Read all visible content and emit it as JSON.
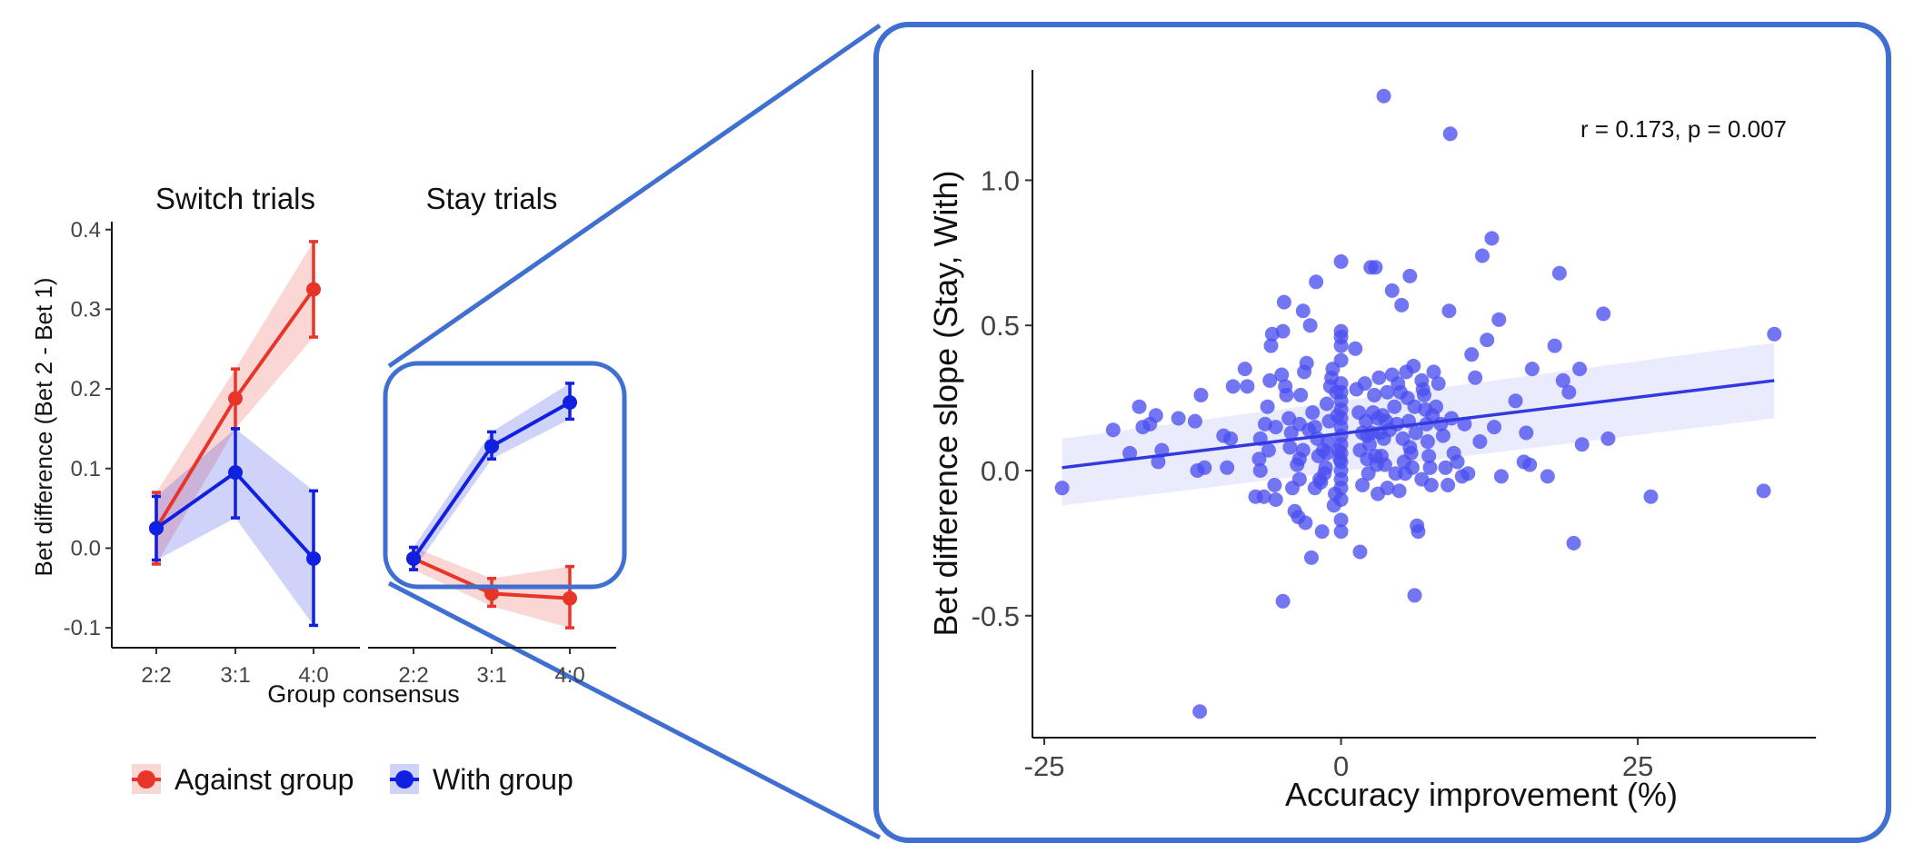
{
  "colors": {
    "against": "#e8352a",
    "with": "#1020e0",
    "scatter": "#4b4ff0",
    "fit": "#3338e0",
    "frame": "#3f6fd0"
  },
  "legend": {
    "against_label": "Against group",
    "with_label": "With group"
  },
  "chart_data": [
    {
      "type": "line",
      "title": "Switch trials",
      "xlabel": "Group consensus",
      "ylabel": "Bet difference (Bet 2 - Bet 1)",
      "categories": [
        "2:2",
        "3:1",
        "4:0"
      ],
      "ylim": [
        -0.125,
        0.41
      ],
      "yticks": [
        -0.1,
        0.0,
        0.1,
        0.2,
        0.3,
        0.4
      ],
      "ytick_labels": [
        "-0.1",
        "0.0",
        "0.1",
        "0.2",
        "0.3",
        "0.4"
      ],
      "series": [
        {
          "name": "Against group",
          "values": [
            0.025,
            0.188,
            0.325
          ],
          "lower": [
            -0.02,
            0.15,
            0.265
          ],
          "upper": [
            0.07,
            0.225,
            0.385
          ]
        },
        {
          "name": "With group",
          "values": [
            0.025,
            0.095,
            -0.013
          ],
          "lower": [
            -0.015,
            0.038,
            -0.097
          ],
          "upper": [
            0.065,
            0.15,
            0.072
          ]
        }
      ]
    },
    {
      "type": "line",
      "title": "Stay trials",
      "xlabel": "Group consensus",
      "categories": [
        "2:2",
        "3:1",
        "4:0"
      ],
      "ylim": [
        -0.125,
        0.41
      ],
      "series": [
        {
          "name": "Against group",
          "values": [
            -0.013,
            -0.057,
            -0.063
          ],
          "lower": [
            -0.027,
            -0.073,
            -0.1
          ],
          "upper": [
            0.001,
            -0.038,
            -0.023
          ]
        },
        {
          "name": "With group",
          "values": [
            -0.013,
            0.128,
            0.183
          ],
          "lower": [
            -0.027,
            0.112,
            0.162
          ],
          "upper": [
            0.001,
            0.146,
            0.207
          ]
        }
      ]
    },
    {
      "type": "scatter",
      "xlabel": "Accuracy improvement (%)",
      "ylabel": "Bet difference slope (Stay, With)",
      "annotation": "r = 0.173, p = 0.007",
      "xlim": [
        -26,
        40
      ],
      "ylim": [
        -0.92,
        1.38
      ],
      "xticks": [
        -25,
        0,
        25
      ],
      "xtick_labels": [
        "-25",
        "0",
        "25"
      ],
      "yticks": [
        -0.5,
        0.0,
        0.5,
        1.0
      ],
      "ytick_labels": [
        "-0.5",
        "0.0",
        "0.5",
        "1.0"
      ],
      "fit": {
        "x": [
          -23.5,
          36.5
        ],
        "y": [
          0.01,
          0.31
        ],
        "ci_lower": [
          -0.12,
          0.18
        ],
        "ci_upper": [
          0.11,
          0.44
        ]
      },
      "points": [
        [
          -23.5,
          -0.06
        ],
        [
          -19.2,
          0.14
        ],
        [
          -17.8,
          0.06
        ],
        [
          -17,
          0.22
        ],
        [
          -16.7,
          0.15
        ],
        [
          -16.1,
          0.16
        ],
        [
          -15.6,
          0.19
        ],
        [
          -15.4,
          0.03
        ],
        [
          -15.1,
          0.07
        ],
        [
          -12.3,
          0.17
        ],
        [
          -11.8,
          0.26
        ],
        [
          -11.5,
          0.01
        ],
        [
          -11.9,
          -0.83
        ],
        [
          -9.9,
          0.12
        ],
        [
          -9.6,
          0.01
        ],
        [
          -9.3,
          0.11
        ],
        [
          -9.1,
          0.29
        ],
        [
          -8.1,
          0.35
        ],
        [
          -7.9,
          0.29
        ],
        [
          -7.2,
          -0.09
        ],
        [
          -6.9,
          0.04
        ],
        [
          -6.8,
          0
        ],
        [
          -6.5,
          -0.09
        ],
        [
          -6.1,
          0.07
        ],
        [
          -6.2,
          0.22
        ],
        [
          -6,
          0.31
        ],
        [
          -5.9,
          0.43
        ],
        [
          -5.8,
          0.47
        ],
        [
          -5.6,
          -0.05
        ],
        [
          -5.5,
          -0.1
        ],
        [
          -5.5,
          0.15
        ],
        [
          -5,
          0.33
        ],
        [
          -4.9,
          0.48
        ],
        [
          -4.8,
          0.58
        ],
        [
          -4.7,
          0.29
        ],
        [
          -4.6,
          0.26
        ],
        [
          -4.4,
          0.18
        ],
        [
          -4.3,
          0.08
        ],
        [
          -4.2,
          0.13
        ],
        [
          -4.1,
          -0.06
        ],
        [
          -3.9,
          -0.14
        ],
        [
          -3.7,
          0.02
        ],
        [
          -3.6,
          -0.16
        ],
        [
          -3.5,
          0.16
        ],
        [
          -3.4,
          0.26
        ],
        [
          -3.2,
          0.55
        ],
        [
          -3.1,
          0.34
        ],
        [
          -3,
          -0.18
        ],
        [
          -4.9,
          -0.45
        ],
        [
          -3.5,
          0.04
        ],
        [
          -3.2,
          0.07
        ],
        [
          -2.9,
          0.37
        ],
        [
          -2.6,
          0.5
        ],
        [
          -2.4,
          0.2
        ],
        [
          -2.2,
          0.15
        ],
        [
          -2,
          0.11
        ],
        [
          -1.9,
          0.05
        ],
        [
          -1.8,
          -0.03
        ],
        [
          -1.7,
          -0.04
        ],
        [
          -1.6,
          -0.21
        ],
        [
          -2.5,
          -0.3
        ],
        [
          -2.1,
          0.65
        ],
        [
          -1.5,
          0.07
        ],
        [
          -1.4,
          -0.01
        ],
        [
          -1.3,
          0.01
        ],
        [
          -1.2,
          0.06
        ],
        [
          -1.1,
          0.1
        ],
        [
          -1,
          0.17
        ],
        [
          -0.9,
          0.29
        ],
        [
          -0.8,
          0.32
        ],
        [
          -0.7,
          0.35
        ],
        [
          -0.6,
          -0.12
        ],
        [
          -0.5,
          -0.08
        ],
        [
          -0.4,
          0.27
        ],
        [
          -0.3,
          0.19
        ],
        [
          -0.2,
          0.07
        ],
        [
          -0.1,
          0.04
        ],
        [
          0,
          0.46
        ],
        [
          0,
          0.48
        ],
        [
          0,
          0.43
        ],
        [
          0,
          0.38
        ],
        [
          0,
          0.3
        ],
        [
          0,
          0.27
        ],
        [
          0,
          0.24
        ],
        [
          0,
          0.21
        ],
        [
          0,
          0.18
        ],
        [
          0,
          0.15
        ],
        [
          0,
          0.12
        ],
        [
          0,
          0.09
        ],
        [
          0,
          0.06
        ],
        [
          0,
          0.03
        ],
        [
          0,
          0
        ],
        [
          0,
          -0.03
        ],
        [
          0,
          -0.06
        ],
        [
          0,
          -0.1
        ],
        [
          0,
          -0.17
        ],
        [
          0,
          -0.21
        ],
        [
          0,
          0.72
        ],
        [
          1.2,
          0.42
        ],
        [
          1.5,
          0.2
        ],
        [
          1.6,
          0.07
        ],
        [
          1.8,
          0.13
        ],
        [
          2,
          0.3
        ],
        [
          2.1,
          0.17
        ],
        [
          2.2,
          0.04
        ],
        [
          2.3,
          -0.01
        ],
        [
          2.4,
          0.09
        ],
        [
          2.5,
          0.7
        ],
        [
          2.6,
          0.13
        ],
        [
          2.7,
          0.2
        ],
        [
          2.8,
          0.26
        ],
        [
          2.9,
          0.05
        ],
        [
          3,
          0.02
        ],
        [
          3.1,
          -0.08
        ],
        [
          3.2,
          0.32
        ],
        [
          3.3,
          0.13
        ],
        [
          3.4,
          0.05
        ],
        [
          3.5,
          0.19
        ],
        [
          3.6,
          0.11
        ],
        [
          3.7,
          0.02
        ],
        [
          3.8,
          0.17
        ],
        [
          3.9,
          -0.06
        ],
        [
          1.6,
          -0.28
        ],
        [
          2.9,
          0.7
        ],
        [
          3.6,
          1.29
        ],
        [
          4.3,
          0.33
        ],
        [
          4.5,
          0.22
        ],
        [
          4.6,
          -0.01
        ],
        [
          4.7,
          0.16
        ],
        [
          4.8,
          0.3
        ],
        [
          4.9,
          -0.07
        ],
        [
          5.1,
          0.57
        ],
        [
          5.2,
          0.11
        ],
        [
          5.3,
          0.03
        ],
        [
          5.4,
          -0.01
        ],
        [
          5.5,
          0.34
        ],
        [
          5.6,
          0.25
        ],
        [
          5.7,
          0.17
        ],
        [
          5.8,
          0.08
        ],
        [
          5.9,
          0.06
        ],
        [
          6,
          0.01
        ],
        [
          6.1,
          0.36
        ],
        [
          6.2,
          0.22
        ],
        [
          6.3,
          0.13
        ],
        [
          6.4,
          -0.19
        ],
        [
          6.5,
          -0.21
        ],
        [
          4.3,
          0.62
        ],
        [
          5.8,
          0.67
        ],
        [
          6.2,
          -0.43
        ],
        [
          6.8,
          0.31
        ],
        [
          6.9,
          0.28
        ],
        [
          7.1,
          0.21
        ],
        [
          7.2,
          0.16
        ],
        [
          7.3,
          0.1
        ],
        [
          7.4,
          0.05
        ],
        [
          7.5,
          0.01
        ],
        [
          7.6,
          -0.05
        ],
        [
          7.8,
          0.34
        ],
        [
          8,
          0.22
        ],
        [
          8.2,
          0.3
        ],
        [
          8.4,
          0.16
        ],
        [
          8.6,
          0.12
        ],
        [
          8.8,
          0.01
        ],
        [
          9,
          -0.05
        ],
        [
          9.1,
          0.55
        ],
        [
          9.3,
          0.18
        ],
        [
          9.5,
          0.06
        ],
        [
          9.8,
          0.03
        ],
        [
          10.2,
          -0.02
        ],
        [
          10.4,
          0.16
        ],
        [
          10.7,
          -0.01
        ],
        [
          11,
          0.4
        ],
        [
          11.3,
          0.32
        ],
        [
          11.7,
          0.1
        ],
        [
          11.9,
          0.74
        ],
        [
          12.3,
          0.45
        ],
        [
          12.7,
          0.8
        ],
        [
          12.9,
          0.15
        ],
        [
          13.3,
          0.52
        ],
        [
          13.5,
          -0.02
        ],
        [
          9.2,
          1.16
        ],
        [
          14.7,
          0.24
        ],
        [
          15.4,
          0.03
        ],
        [
          15.6,
          0.13
        ],
        [
          15.9,
          0.02
        ],
        [
          16.1,
          0.35
        ],
        [
          17.4,
          -0.02
        ],
        [
          18,
          0.43
        ],
        [
          18.4,
          0.68
        ],
        [
          18.7,
          0.31
        ],
        [
          19.2,
          0.27
        ],
        [
          19.6,
          -0.25
        ],
        [
          20.1,
          0.35
        ],
        [
          20.3,
          0.09
        ],
        [
          22.1,
          0.54
        ],
        [
          22.5,
          0.11
        ],
        [
          26.1,
          -0.09
        ],
        [
          35.6,
          -0.07
        ],
        [
          36.5,
          0.47
        ],
        [
          -12.1,
          0
        ],
        [
          -13.7,
          0.18
        ],
        [
          -6.8,
          0.11
        ],
        [
          -6.4,
          0.16
        ],
        [
          -3.5,
          -0.03
        ],
        [
          -2.7,
          0.14
        ],
        [
          -2.2,
          -0.06
        ],
        [
          -1.2,
          0.23
        ],
        [
          1.3,
          0.28
        ],
        [
          1.8,
          -0.05
        ],
        [
          2.2,
          0.12
        ],
        [
          3.1,
          0.18
        ],
        [
          3.9,
          0.27
        ],
        [
          4.1,
          0.14
        ],
        [
          5,
          0.27
        ],
        [
          6.8,
          -0.03
        ],
        [
          7,
          0.26
        ],
        [
          7.7,
          0.19
        ]
      ]
    }
  ]
}
